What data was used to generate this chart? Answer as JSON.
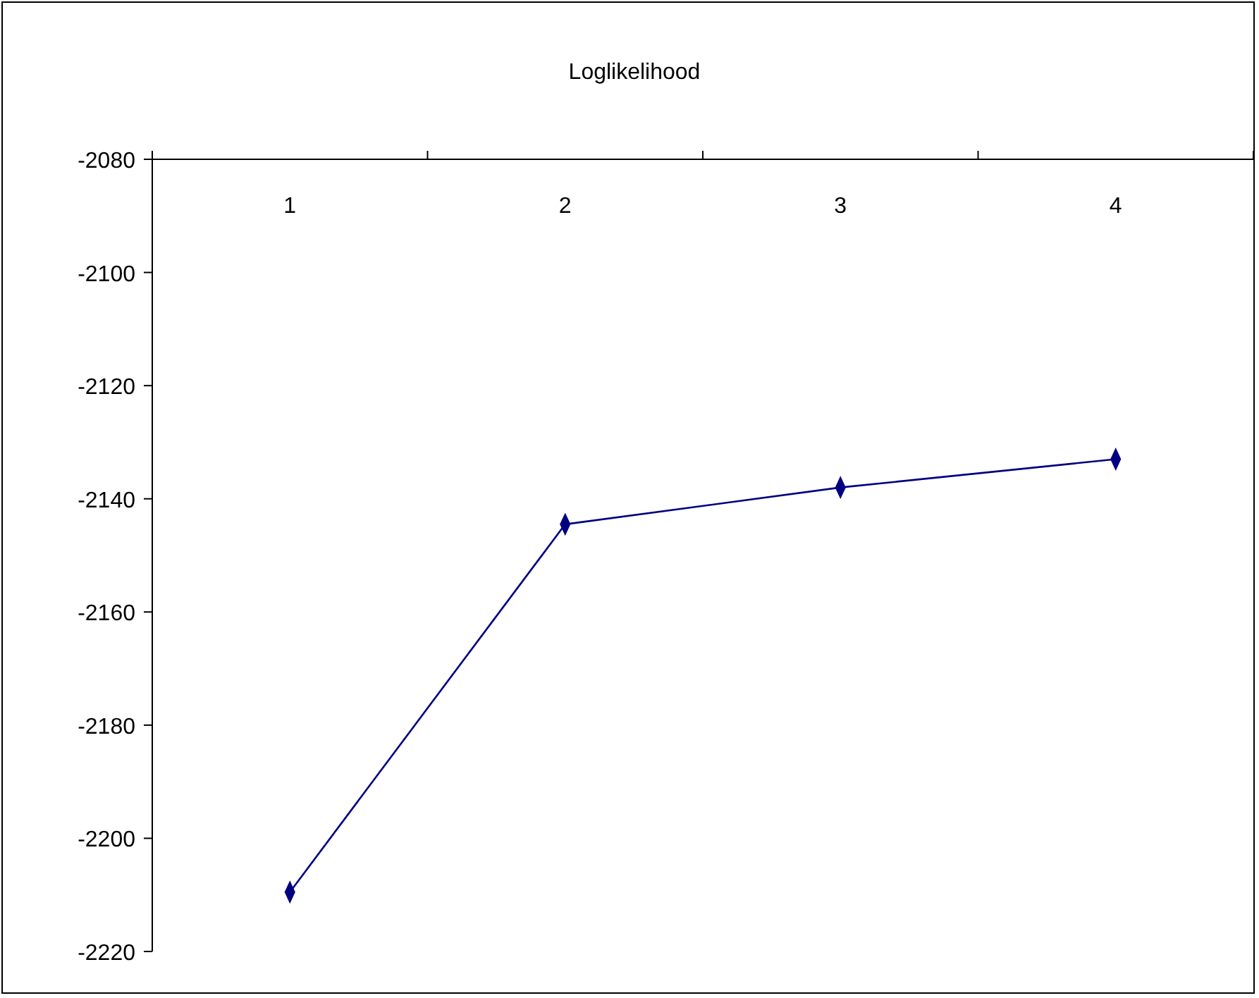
{
  "chart_data": {
    "type": "line",
    "title": "Loglikelihood",
    "categories": [
      "1",
      "2",
      "3",
      "4"
    ],
    "series": [
      {
        "color": "#000080",
        "values": [
          -2209.5,
          -2144.5,
          -2138,
          -2133
        ]
      }
    ],
    "ylim": [
      -2220,
      -2080
    ],
    "yticks": [
      -2220,
      -2200,
      -2180,
      -2160,
      -2140,
      -2120,
      -2100,
      -2080
    ],
    "marker": "diamond",
    "line_style": "solid"
  }
}
